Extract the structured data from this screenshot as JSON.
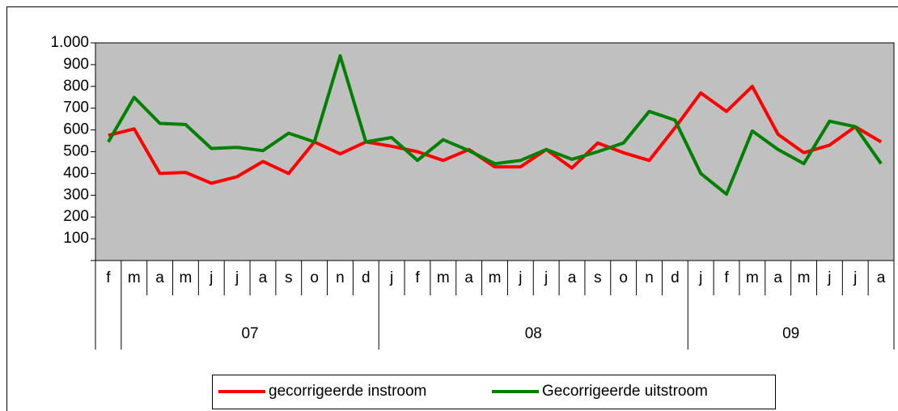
{
  "chart_data": {
    "type": "line",
    "categories": [
      "f",
      "m",
      "a",
      "m",
      "j",
      "j",
      "a",
      "s",
      "o",
      "n",
      "d",
      "j",
      "f",
      "m",
      "a",
      "m",
      "j",
      "j",
      "a",
      "s",
      "o",
      "n",
      "d",
      "j",
      "f",
      "m",
      "a",
      "m",
      "j",
      "j",
      "a"
    ],
    "category_groups": [
      null,
      "07",
      "07",
      "07",
      "07",
      "07",
      "07",
      "07",
      "07",
      "07",
      "07",
      "08",
      "08",
      "08",
      "08",
      "08",
      "08",
      "08",
      "08",
      "08",
      "08",
      "08",
      "08",
      "09",
      "09",
      "09",
      "09",
      "09",
      "09",
      "09",
      "09"
    ],
    "series": [
      {
        "name": "gecorrigeerde instroom",
        "color": "#ff0000",
        "values": [
          575,
          605,
          400,
          405,
          355,
          385,
          455,
          400,
          545,
          490,
          545,
          525,
          500,
          460,
          510,
          430,
          430,
          510,
          425,
          540,
          495,
          460,
          610,
          770,
          685,
          800,
          580,
          495,
          530,
          615,
          545
        ]
      },
      {
        "name": "Gecorrigeerde uitstroom",
        "color": "#008000",
        "values": [
          545,
          750,
          630,
          625,
          515,
          520,
          505,
          585,
          545,
          940,
          545,
          565,
          460,
          555,
          505,
          445,
          460,
          510,
          465,
          500,
          540,
          685,
          645,
          400,
          305,
          595,
          510,
          445,
          640,
          615,
          445
        ]
      }
    ],
    "ylim": [
      0,
      1000
    ],
    "yticks": [
      100,
      200,
      300,
      400,
      500,
      600,
      700,
      800,
      900,
      {
        "value": 1000,
        "label": "1.000"
      }
    ],
    "plot_background": "#c0c0c0",
    "legend": "bottom"
  }
}
